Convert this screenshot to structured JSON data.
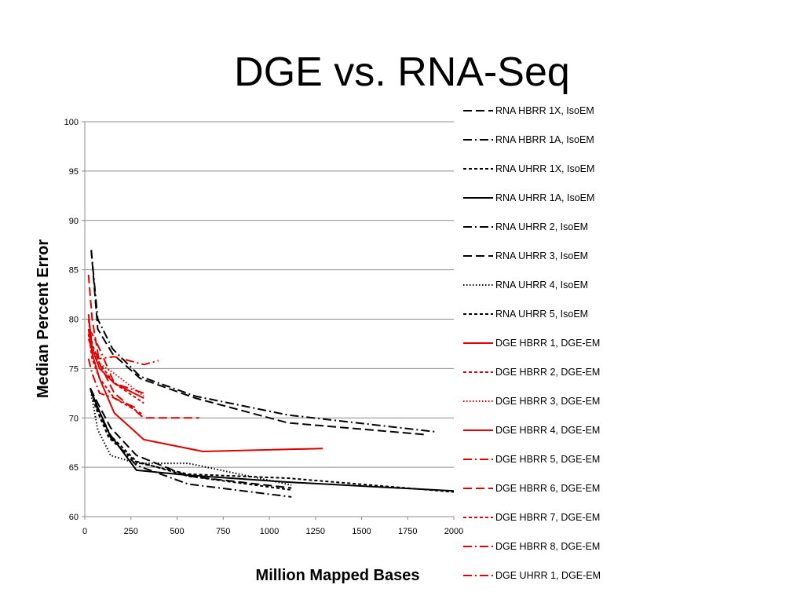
{
  "slide": {
    "title": "DGE vs. RNA-Seq"
  },
  "chart_data": {
    "type": "line",
    "xlabel": "Million Mapped Bases",
    "ylabel": "Median Percent Error",
    "xlim": [
      0,
      2000
    ],
    "ylim": [
      60,
      100
    ],
    "xticks": [
      0,
      250,
      500,
      750,
      1000,
      1250,
      1500,
      1750,
      2000
    ],
    "yticks": [
      60,
      65,
      70,
      75,
      80,
      85,
      90,
      95,
      100
    ],
    "grid": "horizontal",
    "legend_position": "right",
    "series": [
      {
        "name": "RNA HBRR 1X, IsoEM",
        "color": "#000000",
        "dash": "longdash",
        "x": [
          35,
          70,
          150,
          300,
          600,
          1100,
          1850
        ],
        "y": [
          87,
          79,
          76.5,
          74,
          72,
          69.5,
          68.3
        ]
      },
      {
        "name": "RNA HBRR 1A, IsoEM",
        "color": "#000000",
        "dash": "dashdot",
        "x": [
          35,
          70,
          150,
          300,
          600,
          1100,
          1900
        ],
        "y": [
          87,
          80,
          77,
          74.2,
          72.2,
          70.3,
          68.6
        ]
      },
      {
        "name": "RNA UHRR 1X, IsoEM",
        "color": "#000000",
        "dash": "dash",
        "x": [
          30,
          60,
          130,
          280,
          560,
          1100,
          2000
        ],
        "y": [
          73,
          71,
          68,
          65.5,
          64.3,
          63.9,
          62.5
        ]
      },
      {
        "name": "RNA UHRR 1A, IsoEM",
        "color": "#000000",
        "dash": "solid",
        "x": [
          30,
          60,
          130,
          280,
          560,
          1100,
          2000
        ],
        "y": [
          73,
          71.5,
          68.5,
          64.7,
          64.2,
          63.5,
          62.6
        ]
      },
      {
        "name": "RNA UHRR 2, IsoEM",
        "color": "#000000",
        "dash": "dashdot",
        "x": [
          30,
          70,
          140,
          280,
          560,
          1120
        ],
        "y": [
          73,
          70.8,
          68,
          65.2,
          63.3,
          62
        ]
      },
      {
        "name": "RNA UHRR 3, IsoEM",
        "color": "#000000",
        "dash": "longdash",
        "x": [
          30,
          70,
          140,
          280,
          560,
          1120
        ],
        "y": [
          73,
          71.5,
          69,
          66.2,
          64.1,
          62.9
        ]
      },
      {
        "name": "RNA UHRR 4, IsoEM",
        "color": "#000000",
        "dash": "dot",
        "x": [
          30,
          70,
          140,
          280,
          560,
          1120
        ],
        "y": [
          73,
          68.8,
          66.2,
          65.4,
          65.4,
          63.2
        ]
      },
      {
        "name": "RNA UHRR 5, IsoEM",
        "color": "#000000",
        "dash": "dash",
        "x": [
          30,
          70,
          140,
          280,
          560,
          1120
        ],
        "y": [
          73,
          71,
          68.2,
          65.6,
          64.1,
          62.7
        ]
      },
      {
        "name": "DGE HBRR 1, DGE-EM",
        "color": "#e00000",
        "dash": "solid",
        "x": [
          20,
          40,
          80,
          160,
          320
        ],
        "y": [
          80.5,
          77,
          75,
          73.5,
          72
        ]
      },
      {
        "name": "DGE HBRR 2, DGE-EM",
        "color": "#e00000",
        "dash": "dash",
        "x": [
          20,
          40,
          80,
          160,
          320
        ],
        "y": [
          80,
          77.5,
          75.5,
          73.5,
          71.5
        ]
      },
      {
        "name": "DGE HBRR 3, DGE-EM",
        "color": "#e00000",
        "dash": "dot",
        "x": [
          20,
          40,
          80,
          160,
          320
        ],
        "y": [
          80,
          77,
          75.5,
          74.5,
          72.2
        ]
      },
      {
        "name": "DGE HBRR 4, DGE-EM",
        "color": "#e00000",
        "dash": "solid",
        "x": [
          20,
          40,
          80,
          160,
          320,
          640,
          1290
        ],
        "y": [
          79,
          76.5,
          74,
          70.5,
          67.8,
          66.6,
          66.9
        ]
      },
      {
        "name": "DGE HBRR 5, DGE-EM",
        "color": "#e00000",
        "dash": "dashdot",
        "x": [
          20,
          40,
          80,
          160,
          320,
          400
        ],
        "y": [
          78,
          77,
          76,
          76.2,
          75.4,
          75.8
        ]
      },
      {
        "name": "DGE HBRR 6, DGE-EM",
        "color": "#e00000",
        "dash": "longdash",
        "x": [
          20,
          40,
          80,
          160,
          320,
          620
        ],
        "y": [
          84.5,
          80,
          75.5,
          72.5,
          70,
          70
        ]
      },
      {
        "name": "DGE HBRR 7, DGE-EM",
        "color": "#e00000",
        "dash": "dash",
        "x": [
          20,
          40,
          80,
          160,
          320
        ],
        "y": [
          78.5,
          76,
          74,
          72,
          70.3
        ]
      },
      {
        "name": "DGE HBRR 8, DGE-EM",
        "color": "#e00000",
        "dash": "dashdot",
        "x": [
          20,
          40,
          80,
          160,
          320
        ],
        "y": [
          79,
          78.5,
          77,
          73.5,
          72.5
        ]
      },
      {
        "name": "DGE UHRR 1, DGE-EM",
        "color": "#e00000",
        "dash": "dashdot",
        "x": [
          20,
          40,
          80,
          160,
          280
        ],
        "y": [
          76,
          74.5,
          72.5,
          72,
          71
        ]
      }
    ]
  }
}
